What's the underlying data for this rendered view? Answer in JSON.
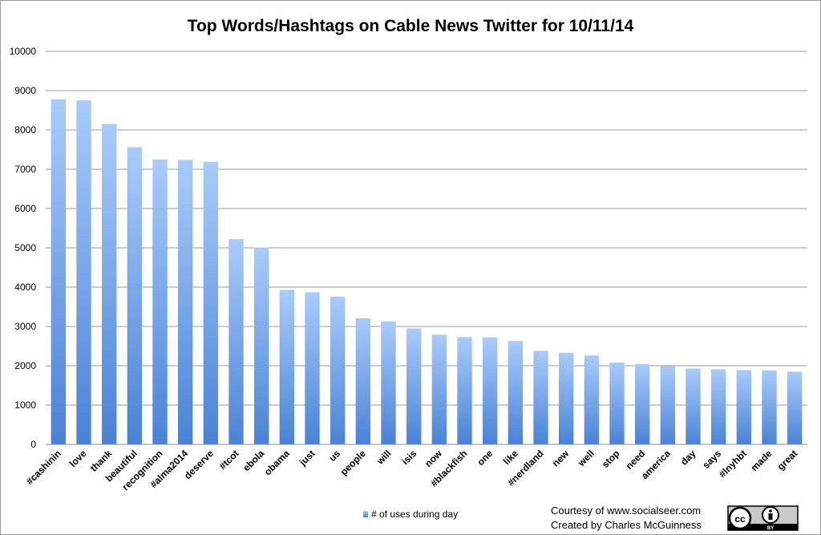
{
  "chart_data": {
    "type": "bar",
    "title": "Top Words/Hashtags on Cable News Twitter for 10/11/14",
    "xlabel": "",
    "ylabel": "",
    "ylim": [
      0,
      10000
    ],
    "yticks": [
      0,
      1000,
      2000,
      3000,
      4000,
      5000,
      6000,
      7000,
      8000,
      9000,
      10000
    ],
    "grid": true,
    "legend_position": "bottom",
    "categories": [
      "#cashinin",
      "love",
      "thank",
      "beautiful",
      "recognition",
      "#alma2014",
      "deserve",
      "#tcot",
      "ebola",
      "obama",
      "just",
      "us",
      "people",
      "will",
      "isis",
      "now",
      "#blackfish",
      "one",
      "like",
      "#nerdland",
      "new",
      "well",
      "stop",
      "need",
      "america",
      "day",
      "says",
      "#lnyhbt",
      "made",
      "great"
    ],
    "series": [
      {
        "name": "# of uses during day",
        "color": "#5b8fdc",
        "values": [
          8780,
          8750,
          8150,
          7560,
          7250,
          7240,
          7190,
          5220,
          5010,
          3930,
          3870,
          3760,
          3210,
          3130,
          2950,
          2790,
          2730,
          2720,
          2630,
          2380,
          2330,
          2260,
          2080,
          2040,
          1990,
          1930,
          1910,
          1890,
          1880,
          1850
        ]
      }
    ]
  },
  "footer": {
    "courtesy": "Courtesy of www.socialseer.com",
    "created_by": "Created by Charles McGuinness"
  },
  "license_badge": {
    "symbol": "cc",
    "by_label": "BY",
    "icons": [
      "creative-commons-icon",
      "person-icon"
    ]
  }
}
